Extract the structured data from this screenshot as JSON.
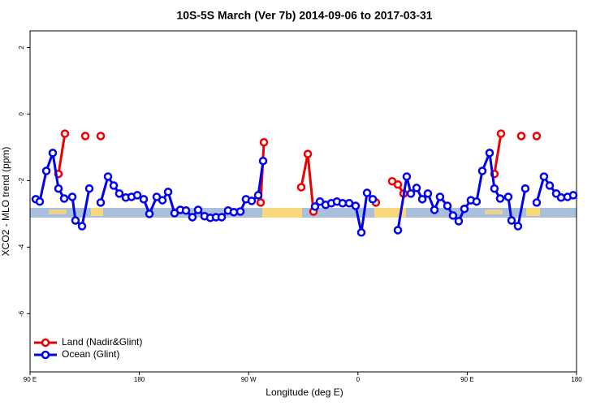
{
  "chart_data": {
    "type": "line",
    "title": "10S-5S March (Ver 7b)   2014-09-06 to 2017-03-31",
    "x_label": "Longitude (deg E)",
    "y_label": "XCO2 - MLO trend (ppm)",
    "xlim": [
      90,
      540
    ],
    "ylim": [
      -7.75,
      2.5
    ],
    "xticks": [
      {
        "value": 90,
        "label": "90 E"
      },
      180,
      {
        "value": 270,
        "label": "90 W"
      },
      {
        "value": 360,
        "label": "0"
      },
      {
        "value": 450,
        "label": "90 E"
      },
      {
        "value": 540,
        "label": "180"
      }
    ],
    "yticks": [
      -6,
      -4,
      -2,
      0,
      2
    ],
    "legend": "bottom-left",
    "series": [
      {
        "name": "Land (Nadir&Glint)",
        "color": "#ee0000",
        "x": [
          113.4,
          118.7,
          null,
          135.5,
          null,
          148.2,
          null,
          279.9,
          282.6,
          null,
          313.3,
          318.7,
          323.4,
          null,
          374.8,
          null,
          388.2,
          392.9,
          397.6,
          null,
          472.4,
          477.8,
          null,
          494.5,
          null,
          507.2
        ],
        "values": [
          -1.8,
          -0.59,
          null,
          -0.66,
          null,
          -0.66,
          null,
          -2.66,
          -0.85,
          null,
          -2.2,
          -1.2,
          -2.93,
          null,
          -2.66,
          null,
          -2.02,
          -2.12,
          -2.39,
          null,
          -1.8,
          -0.59,
          null,
          -0.66,
          null,
          -0.66
        ]
      },
      {
        "name": "Ocean (Glint)",
        "color": "#0000ee",
        "x": [
          94.7,
          98.0,
          103.4,
          108.7,
          113.4,
          118.1,
          124.8,
          127.4,
          132.8,
          138.8,
          null,
          148.2,
          154.2,
          158.9,
          163.5,
          168.9,
          173.6,
          178.3,
          183.6,
          188.3,
          194.3,
          199.0,
          203.7,
          209.0,
          213.7,
          218.4,
          223.7,
          228.4,
          233.7,
          238.4,
          243.1,
          247.8,
          253.1,
          257.8,
          263.2,
          267.8,
          272.5,
          277.9,
          281.9,
          null,
          324.7,
          328.7,
          333.4,
          338.1,
          342.7,
          347.4,
          352.8,
          358.1,
          362.8,
          367.5,
          372.2,
          null,
          392.9,
          400.2,
          403.6,
          408.3,
          413.0,
          417.6,
          423.0,
          427.6,
          433.7,
          438.3,
          443.0,
          447.7,
          453.0,
          457.7,
          462.4,
          468.4,
          472.4,
          477.1,
          483.8,
          486.5,
          491.8,
          497.8,
          null,
          507.2,
          513.2,
          517.9,
          523.3,
          527.3,
          532.6,
          537.3
        ],
        "values": [
          -2.56,
          -2.63,
          -1.71,
          -1.17,
          -2.24,
          -2.54,
          -2.49,
          -3.2,
          -3.37,
          -2.24,
          null,
          -2.66,
          -1.88,
          -2.15,
          -2.39,
          -2.51,
          -2.49,
          -2.44,
          -2.56,
          -3.0,
          -2.49,
          -2.59,
          -2.34,
          -2.98,
          -2.88,
          -2.9,
          -3.1,
          -2.88,
          -3.07,
          -3.12,
          -3.1,
          -3.1,
          -2.9,
          -2.95,
          -2.93,
          -2.56,
          -2.61,
          -2.44,
          -1.41,
          null,
          -2.78,
          -2.63,
          -2.73,
          -2.68,
          -2.63,
          -2.68,
          -2.68,
          -2.76,
          -3.56,
          -2.37,
          -2.56,
          null,
          -3.49,
          -1.88,
          -2.39,
          -2.22,
          -2.56,
          -2.39,
          -2.88,
          -2.49,
          -2.76,
          -3.05,
          -3.22,
          -2.85,
          -2.59,
          -2.63,
          -1.71,
          -1.17,
          -2.24,
          -2.54,
          -2.49,
          -3.2,
          -3.37,
          -2.24,
          null,
          -2.66,
          -1.88,
          -2.15,
          -2.39,
          -2.51,
          -2.49,
          -2.44
        ]
      }
    ]
  }
}
